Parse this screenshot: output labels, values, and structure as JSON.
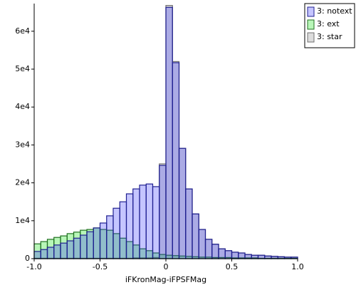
{
  "chart_data": {
    "type": "histogram",
    "x_label": "iFKronMag-iFPSFMag",
    "bins": [
      -1.0,
      -0.95,
      -0.9,
      -0.85,
      -0.8,
      -0.75,
      -0.7,
      -0.65,
      -0.6,
      -0.55,
      -0.5,
      -0.45,
      -0.4,
      -0.35,
      -0.3,
      -0.25,
      -0.2,
      -0.15,
      -0.1,
      -0.05,
      0,
      0.05,
      0.1,
      0.15,
      0.2,
      0.25,
      0.3,
      0.35,
      0.4,
      0.45,
      0.5,
      0.55,
      0.6,
      0.65,
      0.7,
      0.75,
      0.8,
      0.85,
      0.9,
      0.95,
      1.0
    ],
    "series": [
      {
        "name": "3: star",
        "color": "#808080",
        "stroke": "#707070",
        "values": [
          100,
          100,
          100,
          100,
          100,
          100,
          100,
          100,
          100,
          100,
          100,
          100,
          100,
          100,
          100,
          200,
          200,
          200,
          300,
          25000,
          66800,
          52000,
          29100,
          18400,
          11800,
          7700,
          5100,
          3800,
          2600,
          2100,
          1700,
          1500,
          1100,
          900,
          900,
          700,
          600,
          500,
          400,
          400
        ]
      },
      {
        "name": "3: ext",
        "color": "#00e000",
        "stroke": "#207020",
        "values": [
          3900,
          4500,
          5100,
          5600,
          6000,
          6600,
          7000,
          7500,
          7700,
          8100,
          7700,
          7500,
          6600,
          5400,
          4500,
          3600,
          2600,
          2100,
          1500,
          1100,
          900,
          800,
          700,
          600,
          500,
          400,
          400,
          300,
          300,
          300,
          200,
          200,
          200,
          200,
          100,
          100,
          100,
          100,
          100,
          100
        ]
      },
      {
        "name": "3: notext",
        "color": "#3030ff",
        "stroke": "#202090",
        "values": [
          1900,
          2400,
          3000,
          3600,
          4100,
          4700,
          5400,
          6200,
          7100,
          8100,
          9400,
          11300,
          13300,
          15000,
          17100,
          18400,
          19400,
          19700,
          19000,
          24600,
          66300,
          51700,
          29100,
          18400,
          11800,
          7700,
          5100,
          3800,
          2600,
          2100,
          1700,
          1500,
          1100,
          900,
          900,
          700,
          600,
          500,
          400,
          400
        ]
      }
    ],
    "xlim": [
      -1.0,
      1.0
    ],
    "ylim": [
      0,
      67300
    ],
    "xticks": [
      {
        "value": -1.0,
        "label": "-1.0"
      },
      -0.5,
      0,
      0.5,
      {
        "value": 1.0,
        "label": "1.0"
      }
    ],
    "yticks": [
      0,
      {
        "value": 10000,
        "label": "1e4"
      },
      {
        "value": 20000,
        "label": "2e4"
      },
      {
        "value": 30000,
        "label": "3e4"
      },
      {
        "value": 40000,
        "label": "4e4"
      },
      {
        "value": 50000,
        "label": "5e4"
      },
      {
        "value": 60000,
        "label": "6e4"
      }
    ],
    "legend_position": "outside-top-right",
    "legend_order": [
      2,
      1,
      0
    ]
  }
}
